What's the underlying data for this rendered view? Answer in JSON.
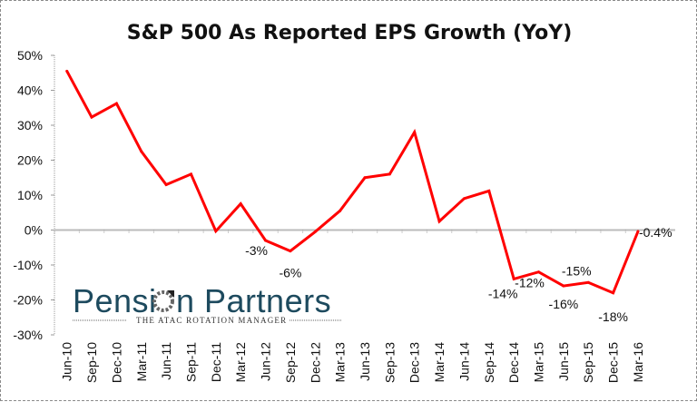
{
  "chart_data": {
    "type": "line",
    "title": "S&P 500 As Reported EPS Growth (YoY)",
    "xlabel": "",
    "ylabel": "",
    "ylim": [
      -30,
      50
    ],
    "ytick_step": 10,
    "ytick_labels": [
      "50%",
      "40%",
      "30%",
      "20%",
      "10%",
      "0%",
      "-10%",
      "-20%",
      "-30%"
    ],
    "grid": false,
    "legend": null,
    "categories": [
      "Jun-10",
      "Sep-10",
      "Dec-10",
      "Mar-11",
      "Jun-11",
      "Sep-11",
      "Dec-11",
      "Mar-12",
      "Jun-12",
      "Sep-12",
      "Dec-12",
      "Mar-13",
      "Jun-13",
      "Sep-13",
      "Dec-13",
      "Mar-14",
      "Jun-14",
      "Sep-14",
      "Dec-14",
      "Mar-15",
      "Jun-15",
      "Sep-15",
      "Dec-15",
      "Mar-16"
    ],
    "series": [
      {
        "name": "EPS Growth YoY",
        "color": "#ff0000",
        "values": [
          45.5,
          32.3,
          36.2,
          22.5,
          13.0,
          16.0,
          -0.3,
          7.5,
          -3.0,
          -6.0,
          -0.5,
          5.5,
          15.0,
          16.0,
          28.0,
          2.5,
          9.0,
          11.2,
          -14.0,
          -12.0,
          -16.0,
          -15.0,
          -18.0,
          -0.4
        ]
      }
    ],
    "annotations": [
      {
        "index": 8,
        "text": "-3%"
      },
      {
        "index": 9,
        "text": "-6%"
      },
      {
        "index": 18,
        "text": "-14%"
      },
      {
        "index": 19,
        "text": "-12%"
      },
      {
        "index": 20,
        "text": "-16%"
      },
      {
        "index": 21,
        "text": "-15%"
      },
      {
        "index": 22,
        "text": "-18%"
      },
      {
        "index": 23,
        "text": "-0.4%"
      }
    ]
  },
  "watermark": {
    "name": "Pension Partners",
    "name_part1": "Pensi",
    "name_part2": "n Partners",
    "tagline": "THE ATAC ROTATION MANAGER",
    "color": "#1d4a5e"
  }
}
